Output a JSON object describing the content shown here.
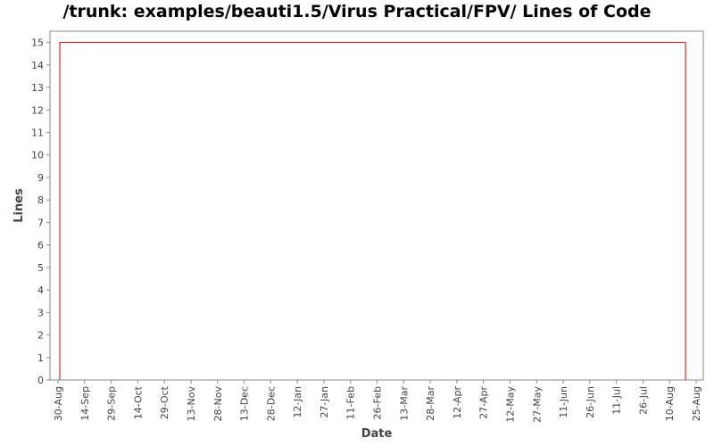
{
  "chart_data": {
    "type": "line",
    "title": "/trunk: examples/beauti1.5/Virus Practical/FPV/ Lines of Code",
    "xlabel": "Date",
    "ylabel": "Lines",
    "x_ticks": [
      "30-Aug",
      "14-Sep",
      "29-Sep",
      "14-Oct",
      "29-Oct",
      "13-Nov",
      "28-Nov",
      "13-Dec",
      "28-Dec",
      "12-Jan",
      "27-Jan",
      "11-Feb",
      "26-Feb",
      "13-Mar",
      "28-Mar",
      "12-Apr",
      "27-Apr",
      "12-May",
      "27-May",
      "11-Jun",
      "26-Jun",
      "11-Jul",
      "26-Jul",
      "10-Aug",
      "25-Aug"
    ],
    "y_ticks": [
      "0",
      "1",
      "2",
      "3",
      "4",
      "5",
      "6",
      "7",
      "8",
      "9",
      "10",
      "11",
      "12",
      "13",
      "14",
      "15"
    ],
    "ylim": [
      0,
      15.5
    ],
    "grid": false,
    "series": [
      {
        "color": "#cc0000",
        "points": [
          {
            "x": "31-Aug",
            "y": 0
          },
          {
            "x": "31-Aug",
            "y": 15
          },
          {
            "x": "19-Aug",
            "y": 15
          },
          {
            "x": "19-Aug",
            "y": 0
          }
        ]
      }
    ]
  }
}
